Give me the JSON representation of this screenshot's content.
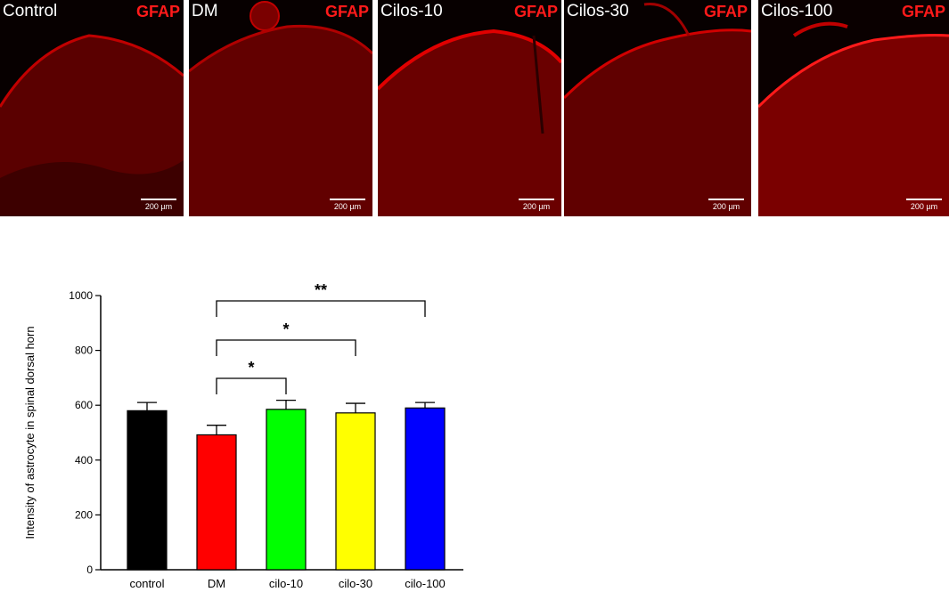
{
  "panels": [
    {
      "label": "Control",
      "marker": "GFAP",
      "scale": "200 µm"
    },
    {
      "label": "DM",
      "marker": "GFAP",
      "scale": "200 µm"
    },
    {
      "label": "Cilos-10",
      "marker": "GFAP",
      "scale": "200 µm"
    },
    {
      "label": "Cilos-30",
      "marker": "GFAP",
      "scale": "200 µm"
    },
    {
      "label": "Cilos-100",
      "marker": "GFAP",
      "scale": "200 µm"
    }
  ],
  "chart_data": {
    "type": "bar",
    "ylabel": "Intensity of astrocyte in spinal dorsal horn",
    "xlabel": "",
    "ylim": [
      0,
      1000
    ],
    "yticks": [
      0,
      200,
      400,
      600,
      800,
      1000
    ],
    "categories": [
      "control",
      "DM",
      "cilo-10",
      "cilo-30",
      "cilo-100"
    ],
    "values": [
      580,
      492,
      585,
      572,
      590
    ],
    "errors": [
      30,
      35,
      33,
      35,
      20
    ],
    "colors": [
      "#000000",
      "#ff0000",
      "#00ff00",
      "#ffff00",
      "#0000ff"
    ],
    "significance": [
      {
        "from": "DM",
        "to": "cilo-10",
        "label": "*"
      },
      {
        "from": "DM",
        "to": "cilo-30",
        "label": "*"
      },
      {
        "from": "DM",
        "to": "cilo-100",
        "label": "**"
      }
    ]
  }
}
